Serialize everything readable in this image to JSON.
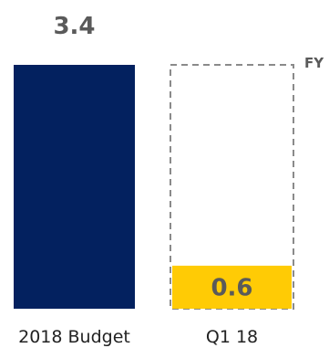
{
  "chart_data": {
    "type": "bar",
    "categories": [
      "2018 Budget",
      "Q1 18"
    ],
    "values": [
      3.4,
      0.6
    ],
    "value_labels": [
      "3.4",
      "0.6"
    ],
    "target_label": "FY",
    "target_value": 3.4,
    "ylim": [
      0,
      3.4
    ],
    "title": "",
    "xlabel": "",
    "ylabel": "",
    "grid": false,
    "colors": {
      "budget": "#03215F",
      "actual": "#FFCB05",
      "target_outline": "#8A8A8A",
      "label": "#5A5A5A"
    }
  }
}
